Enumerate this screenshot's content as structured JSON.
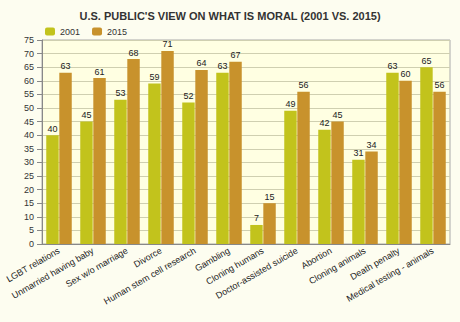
{
  "chart_data": {
    "type": "bar",
    "title": "U.S. PUBLIC'S VIEW ON WHAT IS MORAL (2001 VS. 2015)",
    "categories": [
      "LGBT relations",
      "Unmarried having baby",
      "Sex w/o marriage",
      "Divorce",
      "Human stem cell research",
      "Gambling",
      "Cloning humans",
      "Doctor-assisted suicide",
      "Abortion",
      "Cloning animals",
      "Death penalty",
      "Medical testing - animals"
    ],
    "series": [
      {
        "name": "2001",
        "color": "#c2c31c",
        "values": [
          40,
          45,
          53,
          59,
          52,
          63,
          7,
          49,
          42,
          31,
          63,
          65
        ]
      },
      {
        "name": "2015",
        "color": "#c8922c",
        "values": [
          63,
          61,
          68,
          71,
          64,
          67,
          15,
          56,
          45,
          34,
          60,
          56
        ]
      }
    ],
    "ylim": [
      0,
      75
    ],
    "yticks": [
      0,
      5,
      10,
      15,
      20,
      25,
      30,
      35,
      40,
      45,
      50,
      55,
      60,
      65,
      70,
      75
    ],
    "grid": true,
    "legend": "top-left",
    "data_labels": true
  }
}
